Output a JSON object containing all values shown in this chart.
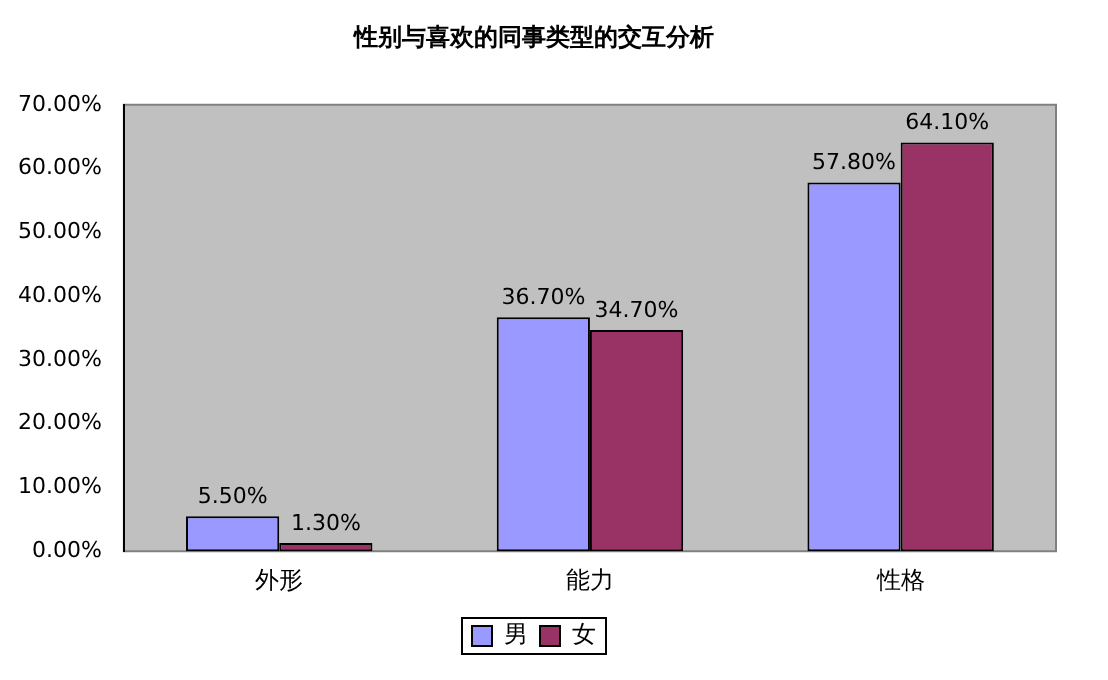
{
  "chart_data": {
    "type": "bar",
    "title": "性别与喜欢的同事类型的交互分析",
    "categories": [
      "外形",
      "能力",
      "性格"
    ],
    "series": [
      {
        "name": "男",
        "color": "#9999ff",
        "values": [
          5.5,
          36.7,
          57.8
        ],
        "value_labels": [
          "5.50%",
          "36.70%",
          "57.80%"
        ]
      },
      {
        "name": "女",
        "color": "#993366",
        "values": [
          1.3,
          34.7,
          64.1
        ],
        "value_labels": [
          "1.30%",
          "34.70%",
          "64.10%"
        ]
      }
    ],
    "ylim": [
      0,
      70
    ],
    "yticks": [
      {
        "value": 0,
        "label": "0.00%"
      },
      {
        "value": 10,
        "label": "10.00%"
      },
      {
        "value": 20,
        "label": "20.00%"
      },
      {
        "value": 30,
        "label": "30.00%"
      },
      {
        "value": 40,
        "label": "40.00%"
      },
      {
        "value": 50,
        "label": "50.00%"
      },
      {
        "value": 60,
        "label": "60.00%"
      },
      {
        "value": 70,
        "label": "70.00%"
      }
    ],
    "grid": false,
    "legend": "bottom"
  }
}
